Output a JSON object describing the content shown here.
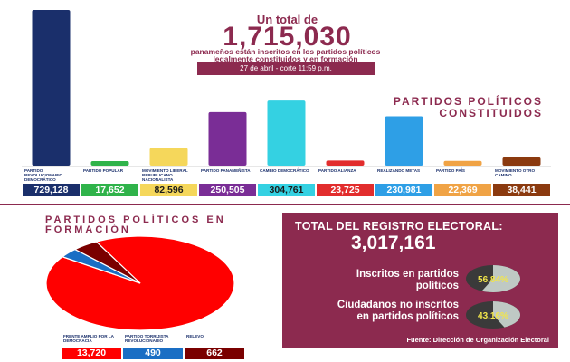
{
  "header": {
    "line1": "Un total de",
    "big_number": "1,715,030",
    "line2": "panameños están inscritos en los partidos políticos",
    "line3": "legalmente constituidos y en formación",
    "date": "27 de abril - corte 11:59 p.m."
  },
  "chart_data": [
    {
      "type": "bar",
      "title": "PARTIDOS POLÍTICOS CONSTITUIDOS",
      "categories": [
        "PARTIDO REVOLUCIONARIO DEMOCRÁTICO",
        "PARTIDO POPULAR",
        "MOVIMIENTO LIBERAL REPUBLICANO NACIONALISTA",
        "PARTIDO PANAMEÑISTA",
        "CAMBIO DEMOCRÁTICO",
        "PARTIDO ALIANZA",
        "REALIZANDO METAS",
        "PARTIDO PAÍS",
        "MOVIMIENTO OTRO CAMINO"
      ],
      "values": [
        729128,
        17652,
        82596,
        250505,
        304761,
        23725,
        230981,
        22369,
        38441
      ],
      "value_labels": [
        "729,128",
        "17,652",
        "82,596",
        "250,505",
        "304,761",
        "23,725",
        "230,981",
        "22,369",
        "38,441"
      ],
      "colors": [
        "#1a2f6b",
        "#2fb34a",
        "#f5d75b",
        "#7a2d96",
        "#34d1e2",
        "#e22d2d",
        "#2e9fe6",
        "#f0a345",
        "#8b3a0f"
      ]
    },
    {
      "type": "pie",
      "title": "PARTIDOS POLÍTICOS EN FORMACIÓN",
      "categories": [
        "FRENTE AMPLIO POR LA DEMOCRACIA",
        "PARTIDO TORRIJISTA REVOLUCIONARIO",
        "RELEVO"
      ],
      "values": [
        13720,
        490,
        662
      ],
      "value_labels": [
        "13,720",
        "490",
        "662"
      ],
      "colors": [
        "#ff0000",
        "#1a6ec4",
        "#7a0000"
      ]
    }
  ],
  "registro": {
    "title": "TOTAL DEL REGISTRO ELECTORAL:",
    "total": "3,017,161",
    "inscritos_label": "Inscritos en partidos políticos",
    "inscritos_pct": "56.84%",
    "inscritos_fraction": 0.5684,
    "no_inscritos_label": "Ciudadanos no inscritos en partidos políticos",
    "no_inscritos_pct": "43.16%",
    "no_inscritos_fraction": 0.4316,
    "source": "Fuente: Dirección de Organización Electoral"
  }
}
